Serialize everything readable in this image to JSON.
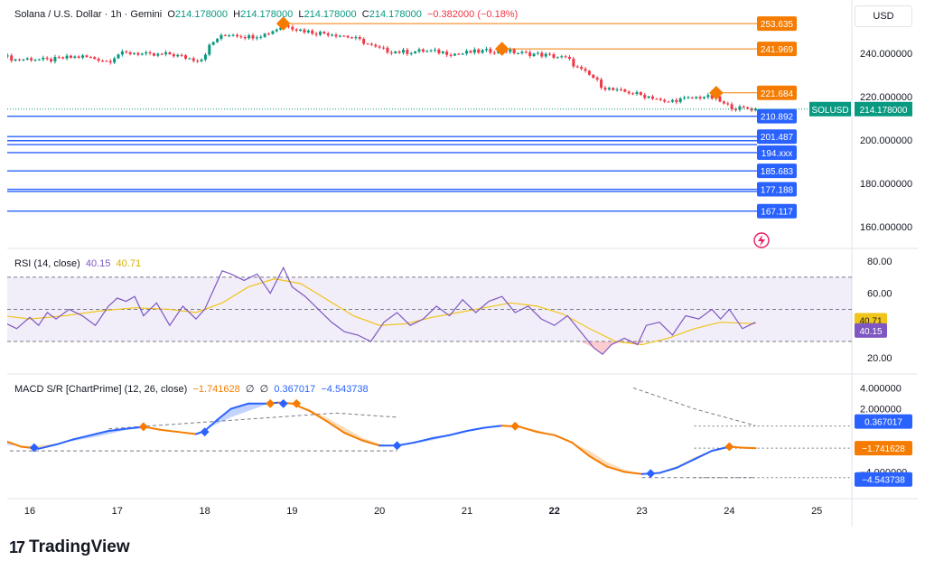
{
  "header": {
    "symbol": "Solana / U.S. Dollar · 1h · Gemini",
    "open_label": "O",
    "open": "214.178000",
    "high_label": "H",
    "high": "214.178000",
    "low_label": "L",
    "low": "214.178000",
    "close_label": "C",
    "close": "214.178000",
    "change": "−0.382000 (−0.18%)",
    "currency": "USD"
  },
  "rsi_legend": {
    "name": "RSI (14, close)",
    "rsi": "40.15",
    "ma": "40.71"
  },
  "macd_legend": {
    "name": "MACD S/R [ChartPrime] (12, 26, close)",
    "v1": "−1.741628",
    "s1": "∅",
    "s2": "∅",
    "v2": "0.367017",
    "v3": "−4.543738"
  },
  "brand": {
    "name": "TradingView",
    "logo_icon": "tradingview-logo-icon"
  },
  "colors": {
    "up": "#089981",
    "down": "#f23645",
    "orange": "#f57c00",
    "blue": "#2962ff",
    "rsi": "#7e57c2",
    "rsi_ma": "#f0c419"
  },
  "chart_data": [
    {
      "type": "candlestick",
      "title": "",
      "x_ticks": [
        "16",
        "17",
        "18",
        "19",
        "20",
        "21",
        "22",
        "23",
        "24",
        "25"
      ],
      "y_ticks": [
        "240.000000",
        "220.000000",
        "200.000000",
        "180.000000",
        "160.000000"
      ],
      "ylim": [
        152,
        262
      ],
      "close_trace": [
        [
          15.7,
          238.5
        ],
        [
          15.85,
          236.8
        ],
        [
          16.0,
          237.5
        ],
        [
          16.2,
          236.6
        ],
        [
          16.4,
          237.8
        ],
        [
          16.6,
          238.4
        ],
        [
          16.8,
          237.2
        ],
        [
          16.9,
          236.0
        ],
        [
          17.0,
          239.5
        ],
        [
          17.2,
          240.2
        ],
        [
          17.4,
          238.8
        ],
        [
          17.6,
          239.6
        ],
        [
          17.75,
          238.2
        ],
        [
          17.9,
          237.0
        ],
        [
          17.97,
          237.5
        ],
        [
          18.05,
          243.0
        ],
        [
          18.15,
          247.0
        ],
        [
          18.3,
          249.0
        ],
        [
          18.5,
          247.5
        ],
        [
          18.7,
          248.8
        ],
        [
          18.85,
          251.8
        ],
        [
          18.95,
          253.0
        ],
        [
          19.05,
          251.0
        ],
        [
          19.25,
          249.5
        ],
        [
          19.45,
          249.0
        ],
        [
          19.65,
          247.5
        ],
        [
          19.8,
          245.5
        ],
        [
          19.95,
          242.5
        ],
        [
          20.1,
          241.0
        ],
        [
          20.3,
          240.5
        ],
        [
          20.5,
          241.0
        ],
        [
          20.7,
          240.5
        ],
        [
          20.9,
          239.5
        ],
        [
          21.05,
          240.5
        ],
        [
          21.25,
          241.0
        ],
        [
          21.4,
          241.5
        ],
        [
          21.6,
          240.0
        ],
        [
          21.8,
          239.5
        ],
        [
          22.0,
          238.5
        ],
        [
          22.15,
          237.5
        ],
        [
          22.25,
          233.5
        ],
        [
          22.35,
          231.0
        ],
        [
          22.45,
          228.5
        ],
        [
          22.55,
          224.5
        ],
        [
          22.7,
          222.5
        ],
        [
          22.85,
          222.0
        ],
        [
          23.0,
          220.5
        ],
        [
          23.15,
          219.5
        ],
        [
          23.25,
          217.0
        ],
        [
          23.4,
          218.5
        ],
        [
          23.55,
          219.0
        ],
        [
          23.7,
          220.0
        ],
        [
          23.85,
          219.0
        ],
        [
          23.95,
          216.0
        ],
        [
          24.1,
          214.5
        ],
        [
          24.2,
          214.5
        ],
        [
          24.3,
          214.2
        ]
      ],
      "markers": [
        {
          "x": 18.9,
          "y": 253.635,
          "label": "253.635"
        },
        {
          "x": 21.4,
          "y": 241.969,
          "label": "241.969"
        },
        {
          "x": 23.85,
          "y": 221.684,
          "label": "221.684"
        }
      ],
      "sr_lines": [
        {
          "y": 210.892,
          "label": "210.892"
        },
        {
          "y": 201.487,
          "label": "201.487"
        },
        {
          "y": 199.6,
          "label": ""
        },
        {
          "y": 197.8,
          "label": ""
        },
        {
          "y": 194.1,
          "label": "194.xxx"
        },
        {
          "y": 185.683,
          "label": "185.683"
        },
        {
          "y": 177.188,
          "label": "177.188"
        },
        {
          "y": 176.2,
          "label": ""
        },
        {
          "y": 167.117,
          "label": "167.117"
        }
      ],
      "current_price": {
        "value": 214.178,
        "symbol": "SOLUSD",
        "label": "214.178000"
      }
    },
    {
      "type": "line",
      "title": "RSI (14, close)",
      "y_ticks": [
        "80.00",
        "60.00",
        "20.00"
      ],
      "ylim": [
        12,
        84
      ],
      "bands": {
        "upper": 70,
        "middle": 50,
        "lower": 30
      },
      "series": [
        {
          "name": "RSI",
          "x": [
            15.7,
            15.85,
            16.0,
            16.1,
            16.2,
            16.3,
            16.45,
            16.6,
            16.75,
            16.9,
            17.0,
            17.1,
            17.2,
            17.3,
            17.45,
            17.6,
            17.75,
            17.9,
            18.0,
            18.1,
            18.2,
            18.3,
            18.45,
            18.6,
            18.75,
            18.9,
            19.0,
            19.15,
            19.3,
            19.45,
            19.6,
            19.75,
            19.9,
            20.05,
            20.2,
            20.35,
            20.5,
            20.65,
            20.8,
            20.95,
            21.1,
            21.25,
            21.4,
            21.55,
            21.7,
            21.85,
            22.0,
            22.15,
            22.3,
            22.45,
            22.55,
            22.65,
            22.8,
            22.95,
            23.05,
            23.2,
            23.35,
            23.5,
            23.65,
            23.8,
            23.9,
            24.0,
            24.15,
            24.3
          ],
          "values": [
            42,
            38,
            45,
            40,
            48,
            44,
            50,
            46,
            40,
            52,
            57,
            55,
            58,
            46,
            54,
            40,
            52,
            44,
            50,
            62,
            74,
            72,
            68,
            72,
            60,
            76,
            64,
            58,
            50,
            42,
            36,
            34,
            30,
            42,
            48,
            40,
            44,
            52,
            46,
            56,
            48,
            55,
            58,
            48,
            52,
            44,
            40,
            46,
            36,
            26,
            22,
            28,
            32,
            28,
            40,
            42,
            34,
            46,
            44,
            50,
            44,
            50,
            38,
            42
          ]
        },
        {
          "name": "RSI-based MA",
          "x": [
            15.7,
            16.0,
            16.4,
            16.8,
            17.2,
            17.6,
            17.9,
            18.2,
            18.5,
            18.8,
            19.1,
            19.4,
            19.7,
            20.0,
            20.3,
            20.6,
            20.9,
            21.2,
            21.5,
            21.8,
            22.1,
            22.4,
            22.7,
            23.0,
            23.3,
            23.6,
            23.9,
            24.3
          ],
          "values": [
            46,
            44,
            46,
            49,
            51,
            50,
            48,
            54,
            64,
            69,
            66,
            56,
            46,
            40,
            41,
            45,
            48,
            51,
            54,
            52,
            47,
            38,
            30,
            28,
            32,
            38,
            42,
            41
          ]
        }
      ]
    },
    {
      "type": "line",
      "title": "MACD S/R [ChartPrime] (12, 26, close)",
      "y_ticks": [
        "4.000000",
        "2.000000",
        "−4.000000"
      ],
      "ylim": [
        -6.2,
        4.8
      ],
      "series": [
        {
          "name": "MACD",
          "x": [
            15.7,
            15.9,
            16.1,
            16.3,
            16.5,
            16.7,
            16.9,
            17.1,
            17.3,
            17.5,
            17.7,
            17.9,
            18.0,
            18.15,
            18.3,
            18.5,
            18.7,
            18.85,
            19.0,
            19.2,
            19.4,
            19.6,
            19.8,
            20.0,
            20.2,
            20.4,
            20.6,
            20.8,
            21.0,
            21.2,
            21.4,
            21.6,
            21.8,
            22.0,
            22.2,
            22.4,
            22.6,
            22.8,
            23.0,
            23.2,
            23.4,
            23.6,
            23.8,
            24.0,
            24.15,
            24.3
          ],
          "values": [
            -1.0,
            -1.6,
            -1.8,
            -1.4,
            -0.9,
            -0.5,
            -0.1,
            0.1,
            0.3,
            0.0,
            -0.2,
            -0.4,
            -0.1,
            1.0,
            2.0,
            2.5,
            2.5,
            2.6,
            2.5,
            1.8,
            0.8,
            -0.3,
            -1.0,
            -1.5,
            -1.5,
            -1.2,
            -0.8,
            -0.5,
            -0.1,
            0.2,
            0.4,
            0.3,
            -0.2,
            -0.5,
            -1.2,
            -2.5,
            -3.5,
            -4.0,
            -4.2,
            -4.1,
            -3.6,
            -2.8,
            -2.0,
            -1.6,
            -1.7,
            -1.74
          ]
        },
        {
          "name": "Signal",
          "x": [
            15.7,
            16.0,
            16.4,
            16.8,
            17.2,
            17.6,
            17.9,
            18.3,
            18.7,
            19.0,
            19.3,
            19.6,
            19.9,
            20.2,
            20.6,
            21.0,
            21.4,
            21.8,
            22.1,
            22.4,
            22.7,
            23.0,
            23.3,
            23.6,
            23.9,
            24.3
          ],
          "values": [
            -1.4,
            -1.6,
            -1.2,
            -0.6,
            0.2,
            0.0,
            -0.4,
            1.2,
            2.4,
            2.6,
            1.6,
            0.2,
            -1.2,
            -1.6,
            -1.0,
            -0.2,
            0.5,
            0.0,
            -0.8,
            -2.0,
            -3.6,
            -4.2,
            -3.9,
            -2.6,
            -1.6,
            -1.7
          ]
        }
      ],
      "levels": [
        {
          "value": 0.367017,
          "label": "0.367017"
        },
        {
          "value": -1.741628,
          "label": "−1.741628"
        },
        {
          "value": -4.543738,
          "label": "−4.543738"
        }
      ]
    }
  ]
}
